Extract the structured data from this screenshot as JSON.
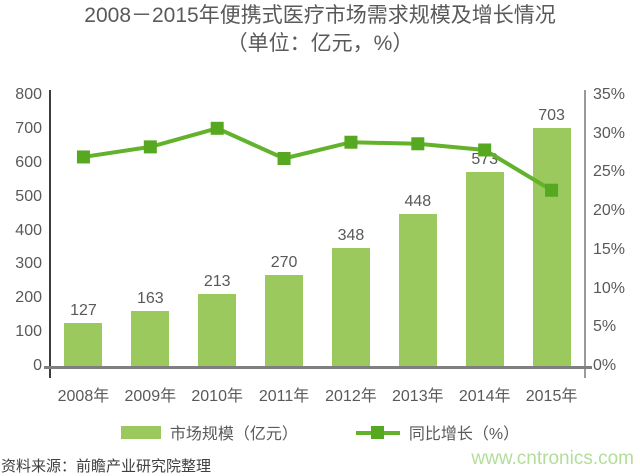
{
  "title": {
    "line1": "2008－2015年便携式医疗市场需求规模及增长情况",
    "line2": "（单位：亿元，%）"
  },
  "chart_data": {
    "type": "bar+line combo",
    "categories": [
      "2008年",
      "2009年",
      "2010年",
      "2011年",
      "2012年",
      "2013年",
      "2014年",
      "2015年"
    ],
    "series": [
      {
        "name": "市场规模（亿元）",
        "type": "bar",
        "axis": "left",
        "values": [
          127,
          163,
          213,
          270,
          348,
          448,
          573,
          703
        ]
      },
      {
        "name": "同比增长（%）",
        "type": "line",
        "axis": "right",
        "values": [
          27.0,
          28.3,
          30.7,
          26.8,
          28.9,
          28.7,
          27.9,
          22.7
        ]
      }
    ],
    "left_axis": {
      "min": 0,
      "max": 800,
      "step": 100
    },
    "right_axis": {
      "min": 0,
      "max": 35,
      "step": 5,
      "suffix": "%"
    },
    "grid": false,
    "legend_position": "bottom",
    "title": "2008－2015年便携式医疗市场需求规模及增长情况（单位：亿元，%）"
  },
  "legend": {
    "items": [
      {
        "label": "市场规模（亿元）"
      },
      {
        "label": "同比增长（%）"
      }
    ]
  },
  "footer": {
    "source": "资料来源：前瞻产业研究院整理",
    "watermark": "www.cntronics.com"
  },
  "colors": {
    "bar": "#9cc95e",
    "line": "#63b22b",
    "marker": "#55a81f",
    "title_text": "#595959",
    "axis_text": "#595959",
    "left_axis_line": "#3d3d3d",
    "right_axis_line": "#9a9a9a",
    "bottom_axis_line": "#7f7f7f",
    "source_text": "#404040",
    "watermark_text": "#b3dd9a"
  }
}
